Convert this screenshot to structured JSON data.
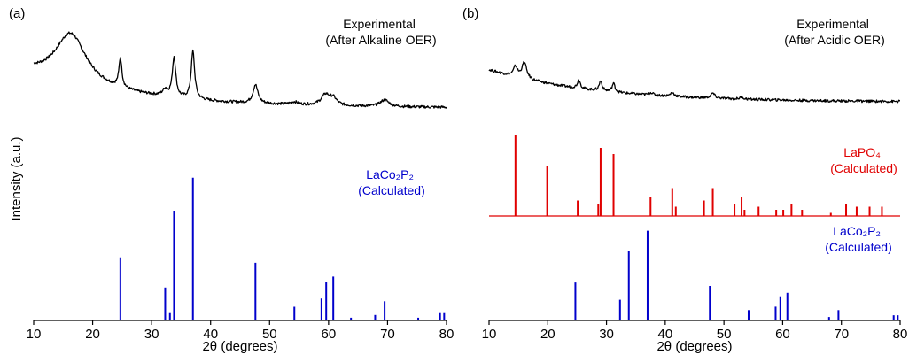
{
  "ylabel": "Intensity (a.u.)",
  "chart_data": [
    {
      "type": "line",
      "panel_label": "(a)",
      "xlabel": "2θ (degrees)",
      "xlim": [
        10,
        80
      ],
      "xticks": [
        10,
        20,
        30,
        40,
        50,
        60,
        70,
        80
      ],
      "grid": false,
      "series": [
        {
          "name": "",
          "kind": "line",
          "color": "#000000",
          "annotation": [
            "Experimental",
            "(After Alkaline OER)"
          ],
          "baseline": 0.58,
          "peaks": [
            {
              "x": 16.3,
              "h": 0.38,
              "w": 3.2
            },
            {
              "x": 24.7,
              "h": 0.22,
              "w": 0.3
            },
            {
              "x": 32.3,
              "h": 0.05,
              "w": 0.5
            },
            {
              "x": 33.8,
              "h": 0.3,
              "w": 0.35
            },
            {
              "x": 37.0,
              "h": 0.36,
              "w": 0.35
            },
            {
              "x": 47.6,
              "h": 0.14,
              "w": 0.5
            },
            {
              "x": 54.2,
              "h": 0.02,
              "w": 0.8
            },
            {
              "x": 59.5,
              "h": 0.08,
              "w": 0.9
            },
            {
              "x": 60.8,
              "h": 0.05,
              "w": 0.7
            },
            {
              "x": 69.5,
              "h": 0.05,
              "w": 0.9
            }
          ]
        },
        {
          "name": "LaCo₂P₂",
          "kind": "sticks",
          "color": "#0000cc",
          "annotation": [
            "LaCo₂P₂",
            "(Calculated)"
          ],
          "sticks": [
            [
              24.7,
              0.23
            ],
            [
              32.3,
              0.12
            ],
            [
              33.1,
              0.03
            ],
            [
              33.8,
              0.4
            ],
            [
              37.0,
              0.52
            ],
            [
              47.6,
              0.21
            ],
            [
              54.2,
              0.05
            ],
            [
              58.8,
              0.08
            ],
            [
              59.6,
              0.14
            ],
            [
              60.8,
              0.16
            ],
            [
              63.8,
              0.01
            ],
            [
              67.9,
              0.02
            ],
            [
              69.5,
              0.07
            ],
            [
              75.2,
              0.01
            ],
            [
              78.9,
              0.03
            ],
            [
              79.6,
              0.03
            ]
          ]
        }
      ]
    },
    {
      "type": "line",
      "panel_label": "(b)",
      "xlabel": "2θ (degrees)",
      "xlim": [
        10,
        80
      ],
      "xticks": [
        10,
        20,
        30,
        40,
        50,
        60,
        70,
        80
      ],
      "grid": false,
      "series": [
        {
          "name": "",
          "kind": "line",
          "color": "#000000",
          "annotation": [
            "Experimental",
            "(After Acidic OER)"
          ],
          "baseline": 0.58,
          "peaks": [
            {
              "x": 14.5,
              "h": 0.08,
              "w": 0.4
            },
            {
              "x": 16.0,
              "h": 0.13,
              "w": 0.5
            },
            {
              "x": 25.3,
              "h": 0.07,
              "w": 0.3
            },
            {
              "x": 29.0,
              "h": 0.08,
              "w": 0.3
            },
            {
              "x": 31.2,
              "h": 0.07,
              "w": 0.3
            },
            {
              "x": 37.6,
              "h": 0.02,
              "w": 0.4
            },
            {
              "x": 41.2,
              "h": 0.03,
              "w": 0.4
            },
            {
              "x": 48.1,
              "h": 0.04,
              "w": 0.4
            },
            {
              "x": 53.0,
              "h": 0.015,
              "w": 0.4
            }
          ]
        },
        {
          "name": "LaPO₄",
          "kind": "sticks",
          "color": "#e00000",
          "annotation": [
            "LaPO₄",
            "(Calculated)"
          ],
          "sticks": [
            [
              14.5,
              0.26
            ],
            [
              19.9,
              0.16
            ],
            [
              25.1,
              0.05
            ],
            [
              28.6,
              0.04
            ],
            [
              29.0,
              0.22
            ],
            [
              31.2,
              0.2
            ],
            [
              37.5,
              0.06
            ],
            [
              41.2,
              0.09
            ],
            [
              41.8,
              0.03
            ],
            [
              46.6,
              0.05
            ],
            [
              48.1,
              0.09
            ],
            [
              51.8,
              0.04
            ],
            [
              53.0,
              0.06
            ],
            [
              53.5,
              0.02
            ],
            [
              55.9,
              0.03
            ],
            [
              58.9,
              0.02
            ],
            [
              60.1,
              0.02
            ],
            [
              61.5,
              0.04
            ],
            [
              63.3,
              0.02
            ],
            [
              68.2,
              0.01
            ],
            [
              70.8,
              0.04
            ],
            [
              72.6,
              0.03
            ],
            [
              74.8,
              0.03
            ],
            [
              76.9,
              0.03
            ]
          ]
        },
        {
          "name": "LaCo₂P₂",
          "kind": "sticks",
          "color": "#0000cc",
          "annotation": [
            "LaCo₂P₂",
            "(Calculated)"
          ],
          "sticks": [
            [
              24.7,
              0.11
            ],
            [
              32.3,
              0.06
            ],
            [
              33.8,
              0.2
            ],
            [
              37.0,
              0.26
            ],
            [
              47.6,
              0.1
            ],
            [
              54.2,
              0.03
            ],
            [
              58.8,
              0.04
            ],
            [
              59.6,
              0.07
            ],
            [
              60.8,
              0.08
            ],
            [
              67.9,
              0.01
            ],
            [
              69.5,
              0.03
            ],
            [
              78.9,
              0.015
            ],
            [
              79.6,
              0.015
            ]
          ]
        }
      ]
    }
  ]
}
